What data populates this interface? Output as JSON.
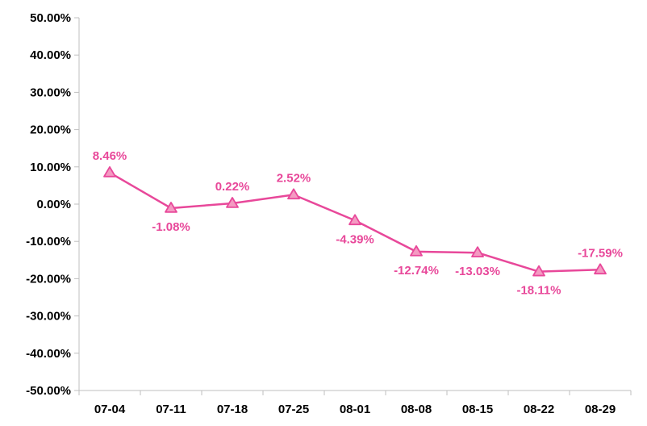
{
  "chart_data": {
    "type": "line",
    "title": "",
    "xlabel": "",
    "ylabel": "",
    "categories": [
      "07-04",
      "07-11",
      "07-18",
      "07-25",
      "08-01",
      "08-08",
      "08-15",
      "08-22",
      "08-29"
    ],
    "series": [
      {
        "values": [
          8.46,
          -1.08,
          0.22,
          2.52,
          -4.39,
          -12.74,
          -13.03,
          -18.11,
          -17.59
        ],
        "data_labels": [
          "8.46%",
          "-1.08%",
          "0.22%",
          "2.52%",
          "-4.39%",
          "-12.74%",
          "-13.03%",
          "-18.11%",
          "-17.59%"
        ],
        "marker": "triangle"
      }
    ],
    "ylim": [
      -50,
      50
    ],
    "yticks": [
      50,
      40,
      30,
      20,
      10,
      0,
      -10,
      -20,
      -30,
      -40,
      -50
    ],
    "ytick_labels": [
      "50.00%",
      "40.00%",
      "30.00%",
      "20.00%",
      "10.00%",
      "0.00%",
      "-10.00%",
      "-20.00%",
      "-30.00%",
      "-40.00%",
      "-50.00%"
    ],
    "grid": false,
    "legend": "none",
    "colors": {
      "line": "#e8489a",
      "marker_fill": "#f49ac2",
      "label": "#e8489a",
      "axis": "#bfbfbf"
    }
  }
}
